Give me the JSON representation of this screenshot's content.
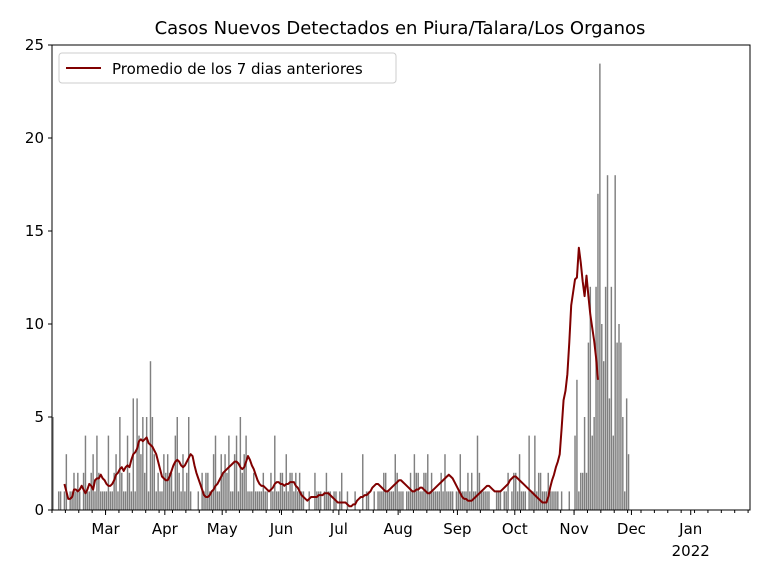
{
  "chart_data": {
    "type": "bar",
    "title": "Casos Nuevos Detectados en Piura/Talara/Los Organos",
    "xlabel": "",
    "ylabel": "",
    "ylim": [
      0,
      25
    ],
    "x_start": "2021-02-01",
    "x_end": "2022-01-31",
    "grid": false,
    "legend_position": "top-left",
    "y_ticks": [
      0,
      5,
      10,
      15,
      20,
      25
    ],
    "x_ticks": [
      {
        "date": "2021-03-01",
        "label": "Mar"
      },
      {
        "date": "2021-04-01",
        "label": "Apr"
      },
      {
        "date": "2021-05-01",
        "label": "May"
      },
      {
        "date": "2021-06-01",
        "label": "Jun"
      },
      {
        "date": "2021-07-01",
        "label": "Jul"
      },
      {
        "date": "2021-08-01",
        "label": "Aug"
      },
      {
        "date": "2021-09-01",
        "label": "Sep"
      },
      {
        "date": "2021-10-01",
        "label": "Oct"
      },
      {
        "date": "2021-11-01",
        "label": "Nov"
      },
      {
        "date": "2021-12-01",
        "label": "Dec"
      },
      {
        "date": "2022-01-01",
        "label": "Jan",
        "sublabel": "2022"
      }
    ],
    "bar_color": "#808080",
    "line_color": "#800000",
    "series": [
      {
        "values": [
          5,
          0,
          0,
          1,
          1,
          0,
          1,
          3,
          0,
          1,
          1,
          2,
          1,
          2,
          1,
          0,
          2,
          4,
          1,
          1,
          2,
          3,
          1,
          4,
          2,
          1,
          1,
          1,
          1,
          4,
          1,
          1,
          2,
          3,
          1,
          5,
          2,
          1,
          1,
          4,
          2,
          1,
          6,
          1,
          6,
          4,
          3,
          5,
          2,
          5,
          1,
          8,
          5,
          3,
          1,
          2,
          1,
          1,
          3,
          2,
          3,
          2,
          2,
          1,
          4,
          5,
          2,
          1,
          3,
          1,
          2,
          5,
          1,
          0,
          0,
          0,
          1,
          0,
          2,
          1,
          2,
          2,
          1,
          1,
          3,
          4,
          1,
          1,
          3,
          2,
          3,
          2,
          4,
          1,
          1,
          3,
          4,
          1,
          5,
          2,
          3,
          4,
          1,
          1,
          1,
          2,
          1,
          1,
          1,
          1,
          2,
          1,
          1,
          0,
          2,
          1,
          4,
          1,
          1,
          2,
          2,
          1,
          3,
          1,
          2,
          2,
          1,
          2,
          1,
          2,
          1,
          1,
          0,
          0,
          1,
          0,
          0,
          2,
          1,
          1,
          1,
          0,
          1,
          2,
          1,
          1,
          0,
          1,
          1,
          0,
          1,
          2,
          0,
          0,
          1,
          0,
          0,
          0,
          1,
          0,
          0,
          0,
          3,
          0,
          1,
          1,
          0,
          0,
          1,
          0,
          1,
          1,
          1,
          2,
          2,
          1,
          1,
          1,
          1,
          3,
          2,
          1,
          1,
          1,
          0,
          1,
          1,
          2,
          1,
          3,
          2,
          2,
          1,
          1,
          2,
          2,
          3,
          1,
          2,
          1,
          1,
          1,
          1,
          2,
          1,
          3,
          1,
          1,
          1,
          1,
          0,
          1,
          1,
          3,
          1,
          1,
          1,
          2,
          1,
          2,
          1,
          1,
          4,
          2,
          1,
          1,
          1,
          1,
          1,
          0,
          0,
          0,
          1,
          1,
          1,
          0,
          1,
          1,
          2,
          0,
          1,
          2,
          2,
          1,
          3,
          1,
          1,
          1,
          0,
          4,
          1,
          1,
          4,
          1,
          2,
          2,
          1,
          1,
          1,
          2,
          1,
          1,
          1,
          1,
          1,
          0,
          1,
          0,
          0,
          0,
          1,
          0,
          0,
          4,
          7,
          1,
          2,
          2,
          5,
          2,
          9,
          12,
          4,
          5,
          12,
          17,
          24,
          10,
          8,
          12,
          18,
          6,
          12,
          4,
          18,
          9,
          10,
          9,
          5,
          1,
          6,
          3
        ],
        "rolling_avg_start_index": 6,
        "rolling_avg": [
          1.4,
          1.0,
          0.6,
          0.6,
          0.7,
          1.1,
          1.1,
          1.0,
          1.1,
          1.3,
          1.1,
          0.9,
          1.1,
          1.4,
          1.3,
          1.1,
          1.6,
          1.7,
          1.7,
          1.9,
          1.7,
          1.6,
          1.4,
          1.3,
          1.3,
          1.4,
          1.6,
          1.9,
          2.0,
          2.2,
          2.3,
          2.1,
          2.3,
          2.4,
          2.3,
          2.7,
          3.0,
          3.1,
          3.3,
          3.7,
          3.8,
          3.7,
          3.8,
          3.9,
          3.6,
          3.5,
          3.4,
          3.2,
          3.0,
          2.6,
          2.2,
          1.8,
          1.7,
          1.6,
          1.6,
          1.8,
          2.1,
          2.4,
          2.6,
          2.7,
          2.6,
          2.4,
          2.3,
          2.4,
          2.6,
          2.8,
          3.0,
          2.9,
          2.4,
          2.0,
          1.7,
          1.4,
          1.1,
          0.8,
          0.7,
          0.7,
          0.8,
          1.0,
          1.1,
          1.3,
          1.4,
          1.6,
          1.8,
          2.0,
          2.1,
          2.2,
          2.3,
          2.4,
          2.5,
          2.6,
          2.6,
          2.5,
          2.3,
          2.2,
          2.3,
          2.6,
          2.9,
          2.7,
          2.4,
          2.2,
          1.9,
          1.6,
          1.4,
          1.3,
          1.3,
          1.2,
          1.1,
          1.0,
          1.1,
          1.2,
          1.4,
          1.5,
          1.5,
          1.4,
          1.4,
          1.3,
          1.4,
          1.4,
          1.5,
          1.5,
          1.5,
          1.3,
          1.2,
          1.0,
          0.8,
          0.7,
          0.6,
          0.5,
          0.6,
          0.7,
          0.7,
          0.7,
          0.7,
          0.8,
          0.8,
          0.8,
          0.9,
          0.9,
          0.9,
          0.8,
          0.7,
          0.6,
          0.5,
          0.4,
          0.4,
          0.4,
          0.4,
          0.4,
          0.3,
          0.2,
          0.2,
          0.3,
          0.3,
          0.5,
          0.6,
          0.7,
          0.7,
          0.8,
          0.8,
          0.9,
          1.0,
          1.2,
          1.3,
          1.4,
          1.4,
          1.3,
          1.2,
          1.1,
          1.0,
          1.0,
          1.1,
          1.2,
          1.3,
          1.4,
          1.5,
          1.6,
          1.6,
          1.5,
          1.4,
          1.3,
          1.2,
          1.1,
          1.0,
          1.0,
          1.1,
          1.1,
          1.2,
          1.2,
          1.1,
          1.0,
          0.9,
          0.9,
          1.0,
          1.1,
          1.2,
          1.3,
          1.4,
          1.5,
          1.6,
          1.7,
          1.8,
          1.9,
          1.8,
          1.7,
          1.5,
          1.3,
          1.1,
          0.9,
          0.7,
          0.6,
          0.6,
          0.5,
          0.5,
          0.5,
          0.6,
          0.7,
          0.8,
          0.9,
          1.0,
          1.1,
          1.2,
          1.3,
          1.3,
          1.2,
          1.1,
          1.0,
          1.0,
          1.0,
          1.0,
          1.1,
          1.2,
          1.3,
          1.4,
          1.6,
          1.7,
          1.8,
          1.8,
          1.7,
          1.6,
          1.5,
          1.4,
          1.3,
          1.2,
          1.1,
          1.0,
          0.9,
          0.8,
          0.7,
          0.6,
          0.5,
          0.4,
          0.4,
          0.4,
          0.7,
          1.2,
          1.6,
          1.9,
          2.3,
          2.6,
          3.0,
          4.4,
          5.9,
          6.4,
          7.3,
          9.0,
          11.0,
          11.7,
          12.4,
          12.5,
          14.1,
          13.3,
          12.3,
          11.5,
          12.6,
          11.5,
          10.5,
          9.8,
          9.1,
          8.2,
          7.0
        ]
      }
    ],
    "legend": [
      {
        "label": "Promedio de los 7 dias anteriores",
        "color": "#800000"
      }
    ]
  }
}
